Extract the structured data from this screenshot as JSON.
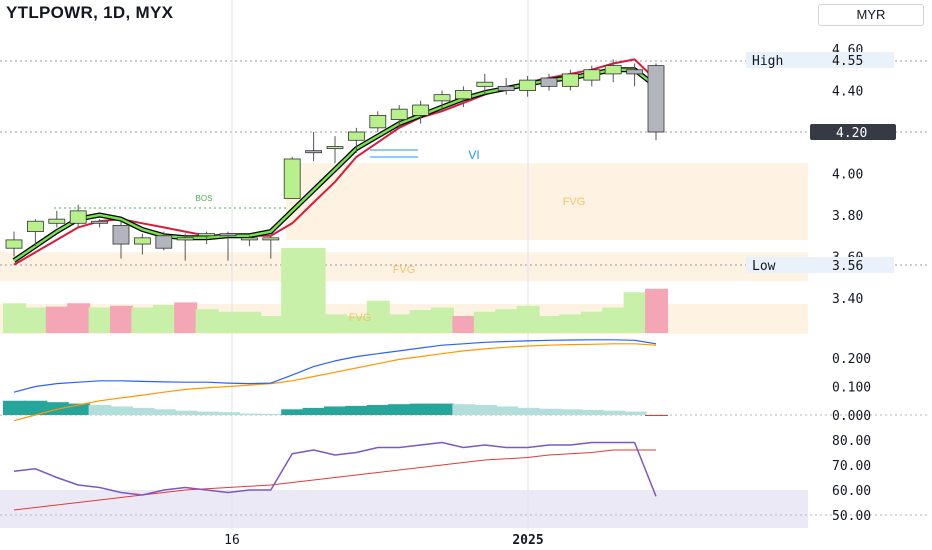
{
  "header": {
    "title": "YTLPOWR, 1D, MYX",
    "currency": "MYR"
  },
  "chart_data": {
    "type": "candlestick",
    "price_axis": {
      "min": 3.3,
      "max": 4.65,
      "ticks": [
        "4.60",
        "4.40",
        "4.20",
        "4.00",
        "3.80",
        "3.60",
        "3.40"
      ]
    },
    "markers": {
      "high_label": "High",
      "high_value": "4.55",
      "low_label": "Low",
      "low_value": "3.56",
      "last_price": "4.20"
    },
    "annotations": {
      "bos": "BOS",
      "fvg": "FVG",
      "vi": "VI"
    },
    "x_labels": [
      "16",
      "2025"
    ],
    "candles": [
      {
        "o": 3.68,
        "h": 3.72,
        "l": 3.6,
        "c": 3.64,
        "up": true
      },
      {
        "o": 3.72,
        "h": 3.78,
        "l": 3.65,
        "c": 3.77,
        "up": true
      },
      {
        "o": 3.76,
        "h": 3.82,
        "l": 3.74,
        "c": 3.78,
        "up": true
      },
      {
        "o": 3.76,
        "h": 3.85,
        "l": 3.74,
        "c": 3.82,
        "up": true
      },
      {
        "o": 3.77,
        "h": 3.78,
        "l": 3.74,
        "c": 3.76,
        "up": false
      },
      {
        "o": 3.75,
        "h": 3.77,
        "l": 3.59,
        "c": 3.66,
        "up": false
      },
      {
        "o": 3.66,
        "h": 3.71,
        "l": 3.61,
        "c": 3.69,
        "up": true
      },
      {
        "o": 3.7,
        "h": 3.72,
        "l": 3.63,
        "c": 3.64,
        "up": false
      },
      {
        "o": 3.68,
        "h": 3.71,
        "l": 3.58,
        "c": 3.69,
        "up": true
      },
      {
        "o": 3.7,
        "h": 3.72,
        "l": 3.66,
        "c": 3.71,
        "up": true
      },
      {
        "o": 3.71,
        "h": 3.72,
        "l": 3.58,
        "c": 3.7,
        "up": false
      },
      {
        "o": 3.69,
        "h": 3.7,
        "l": 3.65,
        "c": 3.68,
        "up": true
      },
      {
        "o": 3.69,
        "h": 3.7,
        "l": 3.59,
        "c": 3.68,
        "up": true
      },
      {
        "o": 3.88,
        "h": 4.08,
        "l": 3.88,
        "c": 4.07,
        "up": true
      },
      {
        "o": 4.1,
        "h": 4.2,
        "l": 4.06,
        "c": 4.11,
        "up": false
      },
      {
        "o": 4.12,
        "h": 4.18,
        "l": 4.05,
        "c": 4.13,
        "up": true
      },
      {
        "o": 4.16,
        "h": 4.22,
        "l": 4.1,
        "c": 4.2,
        "up": true
      },
      {
        "o": 4.22,
        "h": 4.3,
        "l": 4.2,
        "c": 4.28,
        "up": true
      },
      {
        "o": 4.26,
        "h": 4.33,
        "l": 4.22,
        "c": 4.31,
        "up": true
      },
      {
        "o": 4.28,
        "h": 4.35,
        "l": 4.24,
        "c": 4.33,
        "up": true
      },
      {
        "o": 4.35,
        "h": 4.4,
        "l": 4.3,
        "c": 4.38,
        "up": true
      },
      {
        "o": 4.36,
        "h": 4.42,
        "l": 4.32,
        "c": 4.4,
        "up": true
      },
      {
        "o": 4.42,
        "h": 4.48,
        "l": 4.38,
        "c": 4.44,
        "up": true
      },
      {
        "o": 4.42,
        "h": 4.46,
        "l": 4.38,
        "c": 4.4,
        "up": false
      },
      {
        "o": 4.4,
        "h": 4.47,
        "l": 4.37,
        "c": 4.45,
        "up": true
      },
      {
        "o": 4.46,
        "h": 4.48,
        "l": 4.4,
        "c": 4.42,
        "up": false
      },
      {
        "o": 4.42,
        "h": 4.5,
        "l": 4.4,
        "c": 4.48,
        "up": true
      },
      {
        "o": 4.45,
        "h": 4.52,
        "l": 4.42,
        "c": 4.5,
        "up": true
      },
      {
        "o": 4.48,
        "h": 4.55,
        "l": 4.44,
        "c": 4.52,
        "up": true
      },
      {
        "o": 4.5,
        "h": 4.53,
        "l": 4.42,
        "c": 4.48,
        "up": false
      },
      {
        "o": 4.52,
        "h": 4.53,
        "l": 4.16,
        "c": 4.2,
        "up": false
      }
    ],
    "ma_fast": [
      3.58,
      3.65,
      3.72,
      3.78,
      3.8,
      3.78,
      3.73,
      3.7,
      3.69,
      3.69,
      3.7,
      3.7,
      3.72,
      3.82,
      3.92,
      4.02,
      4.12,
      4.18,
      4.24,
      4.28,
      4.32,
      4.36,
      4.39,
      4.41,
      4.43,
      4.45,
      4.46,
      4.48,
      4.5,
      4.5,
      4.42
    ],
    "ma_slow": [
      3.56,
      3.62,
      3.68,
      3.74,
      3.77,
      3.78,
      3.76,
      3.74,
      3.72,
      3.7,
      3.7,
      3.7,
      3.7,
      3.76,
      3.86,
      3.96,
      4.08,
      4.15,
      4.22,
      4.27,
      4.3,
      4.34,
      4.38,
      4.41,
      4.44,
      4.46,
      4.48,
      4.5,
      4.53,
      4.55,
      4.45
    ],
    "volume": [
      0.35,
      0.3,
      0.31,
      0.35,
      0.3,
      0.32,
      0.3,
      0.33,
      0.36,
      0.28,
      0.25,
      0.25,
      0.2,
      1.0,
      1.0,
      0.22,
      0.2,
      0.38,
      0.22,
      0.27,
      0.3,
      0.2,
      0.25,
      0.28,
      0.32,
      0.2,
      0.22,
      0.25,
      0.3,
      0.48,
      0.52
    ],
    "volume_up": [
      true,
      true,
      false,
      false,
      true,
      false,
      true,
      true,
      false,
      true,
      true,
      true,
      true,
      true,
      true,
      true,
      true,
      true,
      true,
      true,
      true,
      false,
      true,
      true,
      true,
      true,
      true,
      true,
      true,
      true,
      false
    ],
    "indicator_1": {
      "ticks": [
        "0.200",
        "0.100",
        "0.000"
      ],
      "line_blue": [
        0.08,
        0.1,
        0.11,
        0.115,
        0.12,
        0.12,
        0.118,
        0.116,
        0.115,
        0.115,
        0.112,
        0.11,
        0.112,
        0.14,
        0.17,
        0.19,
        0.205,
        0.215,
        0.225,
        0.235,
        0.245,
        0.25,
        0.255,
        0.258,
        0.26,
        0.262,
        0.263,
        0.264,
        0.264,
        0.262,
        0.25
      ],
      "line_orange": [
        -0.02,
        0.0,
        0.02,
        0.035,
        0.05,
        0.06,
        0.07,
        0.08,
        0.09,
        0.095,
        0.1,
        0.105,
        0.11,
        0.12,
        0.135,
        0.15,
        0.165,
        0.18,
        0.195,
        0.205,
        0.215,
        0.225,
        0.232,
        0.238,
        0.242,
        0.245,
        0.247,
        0.248,
        0.25,
        0.25,
        0.245
      ],
      "hist": [
        0.05,
        0.05,
        0.045,
        0.04,
        0.035,
        0.03,
        0.025,
        0.02,
        0.015,
        0.012,
        0.01,
        0.005,
        0.004,
        0.02,
        0.025,
        0.03,
        0.032,
        0.035,
        0.038,
        0.04,
        0.04,
        0.038,
        0.035,
        0.03,
        0.025,
        0.022,
        0.02,
        0.018,
        0.015,
        0.012,
        -0.003
      ]
    },
    "indicator_2": {
      "ticks": [
        "80.00",
        "70.00",
        "60.00",
        "50.00"
      ],
      "line_purple": [
        67.5,
        68.5,
        65,
        62,
        61,
        59,
        58,
        60,
        61,
        60,
        59,
        60,
        60,
        74.5,
        76,
        74,
        75,
        77,
        77,
        78,
        79,
        77,
        78,
        77,
        77,
        78,
        78,
        79,
        79,
        79,
        57.5
      ],
      "line_red": [
        52,
        53,
        54,
        55,
        56,
        57,
        58,
        59,
        60,
        60.5,
        61,
        61.5,
        62,
        63,
        64,
        65,
        66,
        67,
        68,
        69,
        70,
        71,
        72,
        72.5,
        73,
        74,
        74.5,
        75,
        76,
        76,
        76
      ]
    }
  }
}
